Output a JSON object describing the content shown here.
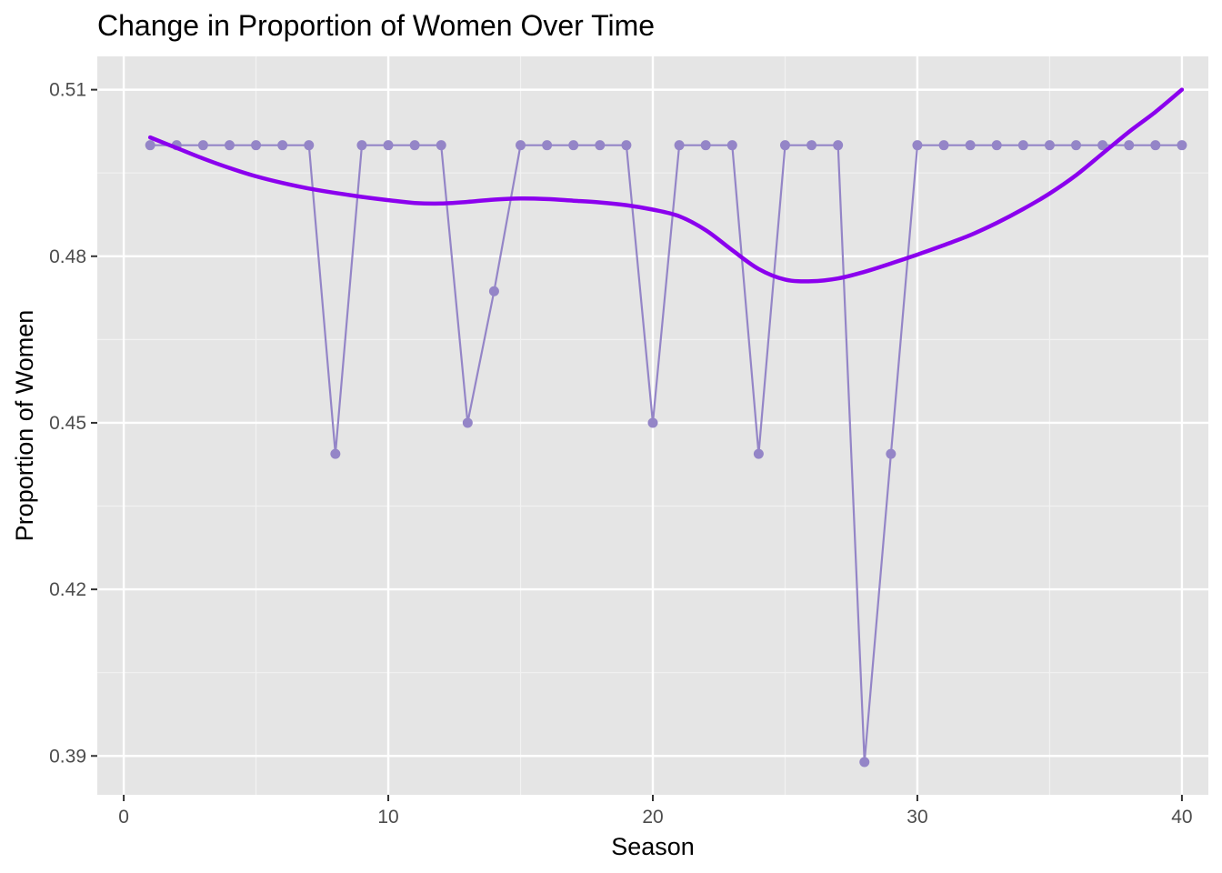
{
  "chart_data": {
    "type": "line",
    "title": "Change in Proportion of Women Over Time",
    "xlabel": "Season",
    "ylabel": "Proportion of Women",
    "xlim": [
      -1,
      41
    ],
    "ylim": [
      0.383,
      0.516
    ],
    "x_ticks": [
      0,
      10,
      20,
      30,
      40
    ],
    "x_tick_labels": [
      "0",
      "10",
      "20",
      "30",
      "40"
    ],
    "y_ticks": [
      0.39,
      0.42,
      0.45,
      0.48,
      0.51
    ],
    "y_tick_labels": [
      "0.39",
      "0.42",
      "0.45",
      "0.48",
      "0.51"
    ],
    "grid": true,
    "panel_background": "#e5e5e5",
    "series": [
      {
        "kind": "line+points",
        "color": "#9485c7",
        "x": [
          1,
          2,
          3,
          4,
          5,
          6,
          7,
          8,
          9,
          10,
          11,
          12,
          13,
          14,
          15,
          16,
          17,
          18,
          19,
          20,
          21,
          22,
          23,
          24,
          25,
          26,
          27,
          28,
          29,
          30,
          31,
          32,
          33,
          34,
          35,
          36,
          37,
          38,
          39,
          40
        ],
        "y": [
          0.5,
          0.5,
          0.5,
          0.5,
          0.5,
          0.5,
          0.5,
          0.4444,
          0.5,
          0.5,
          0.5,
          0.5,
          0.45,
          0.4737,
          0.5,
          0.5,
          0.5,
          0.5,
          0.5,
          0.45,
          0.5,
          0.5,
          0.5,
          0.4444,
          0.5,
          0.5,
          0.5,
          0.3889,
          0.4444,
          0.5,
          0.5,
          0.5,
          0.5,
          0.5,
          0.5,
          0.5,
          0.5,
          0.5,
          0.5,
          0.5
        ]
      },
      {
        "kind": "smooth",
        "color": "#8b00ee",
        "x": [
          1,
          2,
          3,
          4,
          5,
          6,
          7,
          8,
          9,
          10,
          11,
          12,
          13,
          14,
          15,
          16,
          17,
          18,
          19,
          20,
          21,
          22,
          23,
          24,
          25,
          26,
          27,
          28,
          29,
          30,
          31,
          32,
          33,
          34,
          35,
          36,
          37,
          38,
          39,
          40
        ],
        "y": [
          0.5014,
          0.4995,
          0.4976,
          0.4959,
          0.4944,
          0.4932,
          0.4922,
          0.4914,
          0.4907,
          0.4901,
          0.4896,
          0.4895,
          0.4898,
          0.4902,
          0.4904,
          0.4903,
          0.49,
          0.4897,
          0.4892,
          0.4884,
          0.4872,
          0.4847,
          0.4811,
          0.4777,
          0.4758,
          0.4755,
          0.476,
          0.4772,
          0.4787,
          0.4803,
          0.482,
          0.4838,
          0.486,
          0.4885,
          0.4913,
          0.4946,
          0.4985,
          0.5024,
          0.506,
          0.51
        ]
      }
    ]
  }
}
